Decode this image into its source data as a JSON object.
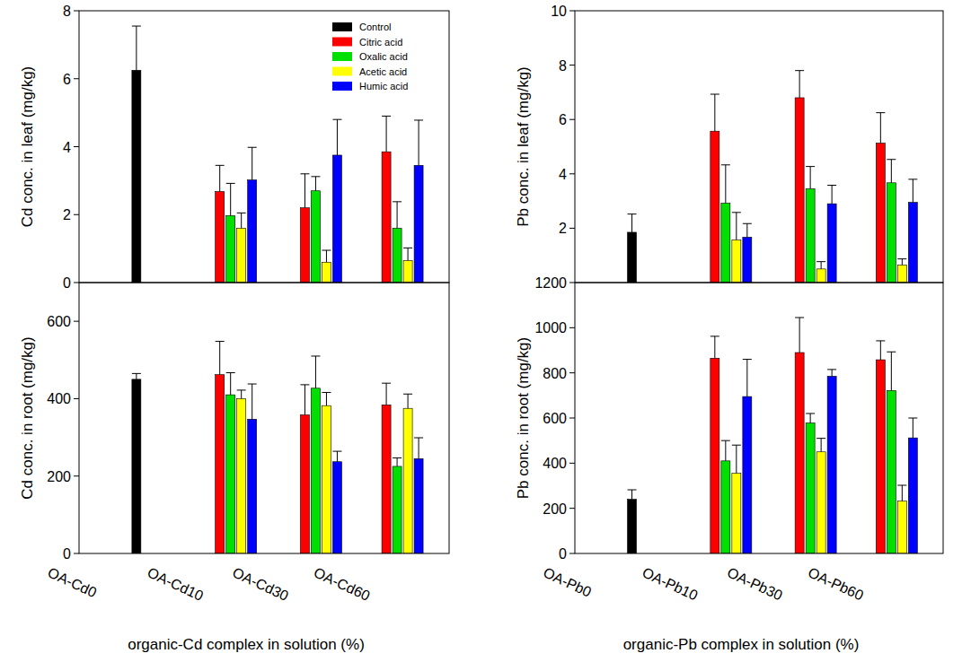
{
  "chart_data": [
    {
      "type": "bar",
      "y_label": "Cd conc. in leaf (mg/kg)",
      "categories": [
        null,
        null,
        null,
        null
      ],
      "ylim": [
        0,
        8
      ],
      "yticks": [
        0,
        2,
        4,
        6,
        8
      ],
      "tick_labels": "y",
      "legend": "top-right",
      "series": [
        {
          "name": "Control",
          "color": "#000000",
          "values": [
            6.25,
            null,
            null,
            null
          ],
          "errors": [
            1.3,
            null,
            null,
            null
          ]
        },
        {
          "name": "Citric acid",
          "color": "#ff0000",
          "values": [
            null,
            2.68,
            2.2,
            3.85
          ],
          "errors": [
            null,
            0.77,
            1.0,
            1.05
          ]
        },
        {
          "name": "Oxalic acid",
          "color": "#00e000",
          "values": [
            null,
            1.97,
            2.7,
            1.6
          ],
          "errors": [
            null,
            0.95,
            0.42,
            0.78
          ]
        },
        {
          "name": "Acetic acid",
          "color": "#ffff00",
          "values": [
            null,
            1.6,
            0.6,
            0.65
          ],
          "errors": [
            null,
            0.45,
            0.35,
            0.37
          ]
        },
        {
          "name": "Humic acid",
          "color": "#0000ff",
          "values": [
            null,
            3.02,
            3.75,
            3.45
          ],
          "errors": [
            null,
            0.96,
            1.05,
            1.33
          ]
        }
      ]
    },
    {
      "type": "bar",
      "y_label": "Cd conc. in root (mg/kg)",
      "x_label": "organic-Cd complex in solution (%)",
      "categories": [
        "OA-Cd0",
        "OA-Cd10",
        "OA-Cd30",
        "OA-Cd60"
      ],
      "ylim": [
        0,
        700
      ],
      "yticks": [
        0,
        200,
        400,
        600
      ],
      "series": [
        {
          "name": "Control",
          "color": "#000000",
          "values": [
            450,
            null,
            null,
            null
          ],
          "errors": [
            15,
            null,
            null,
            null
          ]
        },
        {
          "name": "Citric acid",
          "color": "#ff0000",
          "values": [
            null,
            462,
            358,
            384
          ],
          "errors": [
            null,
            86,
            78,
            56
          ]
        },
        {
          "name": "Oxalic acid",
          "color": "#00e000",
          "values": [
            null,
            410,
            427,
            225
          ],
          "errors": [
            null,
            57,
            83,
            22
          ]
        },
        {
          "name": "Acetic acid",
          "color": "#ffff00",
          "values": [
            null,
            400,
            382,
            375
          ],
          "errors": [
            null,
            22,
            34,
            37
          ]
        },
        {
          "name": "Humic acid",
          "color": "#0000ff",
          "values": [
            null,
            347,
            237,
            245
          ],
          "errors": [
            null,
            91,
            27,
            54
          ]
        }
      ]
    },
    {
      "type": "bar",
      "y_label": "Pb conc. in leaf (mg/kg)",
      "categories": [
        null,
        null,
        null,
        null
      ],
      "ylim": [
        0,
        10
      ],
      "yticks": [
        2,
        4,
        6,
        8,
        10
      ],
      "tick_labels": "y",
      "series": [
        {
          "name": "Control",
          "color": "#000000",
          "values": [
            1.85,
            null,
            null,
            null
          ],
          "errors": [
            0.67,
            null,
            null,
            null
          ]
        },
        {
          "name": "Citric acid",
          "color": "#ff0000",
          "values": [
            null,
            5.57,
            6.8,
            5.13
          ],
          "errors": [
            null,
            1.36,
            1.0,
            1.12
          ]
        },
        {
          "name": "Oxalic acid",
          "color": "#00e000",
          "values": [
            null,
            2.92,
            3.45,
            3.67
          ],
          "errors": [
            null,
            1.41,
            0.82,
            0.86
          ]
        },
        {
          "name": "Acetic acid",
          "color": "#ffff00",
          "values": [
            null,
            1.57,
            0.5,
            0.65
          ],
          "errors": [
            null,
            1.01,
            0.27,
            0.22
          ]
        },
        {
          "name": "Humic acid",
          "color": "#0000ff",
          "values": [
            null,
            1.67,
            2.9,
            2.95
          ],
          "errors": [
            null,
            0.5,
            0.68,
            0.85
          ]
        }
      ]
    },
    {
      "type": "bar",
      "y_label": "Pb conc. in root (mg/kg)",
      "x_label": "organic-Pb complex in solution (%)",
      "categories": [
        "OA-Pb0",
        "OA-Pb10",
        "OA-Pb30",
        "OA-Pb60"
      ],
      "ylim": [
        0,
        1200
      ],
      "yticks": [
        0,
        200,
        400,
        600,
        800,
        1000,
        1200
      ],
      "series": [
        {
          "name": "Control",
          "color": "#000000",
          "values": [
            240,
            null,
            null,
            null
          ],
          "errors": [
            42,
            null,
            null,
            null
          ]
        },
        {
          "name": "Citric acid",
          "color": "#ff0000",
          "values": [
            null,
            865,
            890,
            858
          ],
          "errors": [
            null,
            97,
            155,
            84
          ]
        },
        {
          "name": "Oxalic acid",
          "color": "#00e000",
          "values": [
            null,
            410,
            578,
            722
          ],
          "errors": [
            null,
            90,
            42,
            171
          ]
        },
        {
          "name": "Acetic acid",
          "color": "#ffff00",
          "values": [
            null,
            355,
            450,
            232
          ],
          "errors": [
            null,
            125,
            60,
            70
          ]
        },
        {
          "name": "Humic acid",
          "color": "#0000ff",
          "values": [
            null,
            695,
            785,
            512
          ],
          "errors": [
            null,
            165,
            30,
            88
          ]
        }
      ]
    }
  ]
}
